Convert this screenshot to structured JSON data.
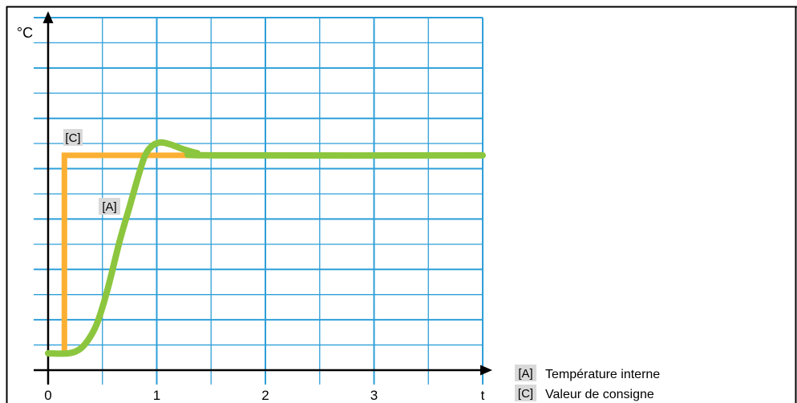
{
  "chart_data": {
    "type": "line",
    "xlabel": "t",
    "ylabel": "°C",
    "x_ticks": [
      "0",
      "1",
      "2",
      "3"
    ],
    "xlim": [
      0,
      4
    ],
    "ylim": [
      0,
      14
    ],
    "grid": true,
    "legend": "bottom-right",
    "series": [
      {
        "tag": "[A]",
        "name": "Température interne",
        "shape": "smooth",
        "color": "#8cc63e",
        "x": [
          0,
          0.19,
          0.3,
          0.39,
          0.46,
          0.55,
          0.66,
          0.75,
          0.83,
          0.89,
          0.95,
          1.03,
          1.12,
          1.24,
          1.37,
          1.51,
          4
        ],
        "y": [
          0.67,
          0.67,
          0.86,
          1.34,
          1.97,
          3.25,
          5.15,
          6.49,
          7.7,
          8.5,
          8.88,
          9.04,
          8.97,
          8.78,
          8.62,
          8.53,
          8.53
        ]
      },
      {
        "tag": "[C]",
        "name": "Valeur de consigne",
        "shape": "step",
        "color": "#fbb034",
        "x": [
          0,
          0.15,
          0.15,
          4
        ],
        "y": [
          0.67,
          0.67,
          8.53,
          8.53
        ]
      }
    ]
  },
  "colors": {
    "grid": "#2e9fd9",
    "axis": "#000000",
    "frame": "#000000",
    "tag_background": "#d9d9d9"
  }
}
